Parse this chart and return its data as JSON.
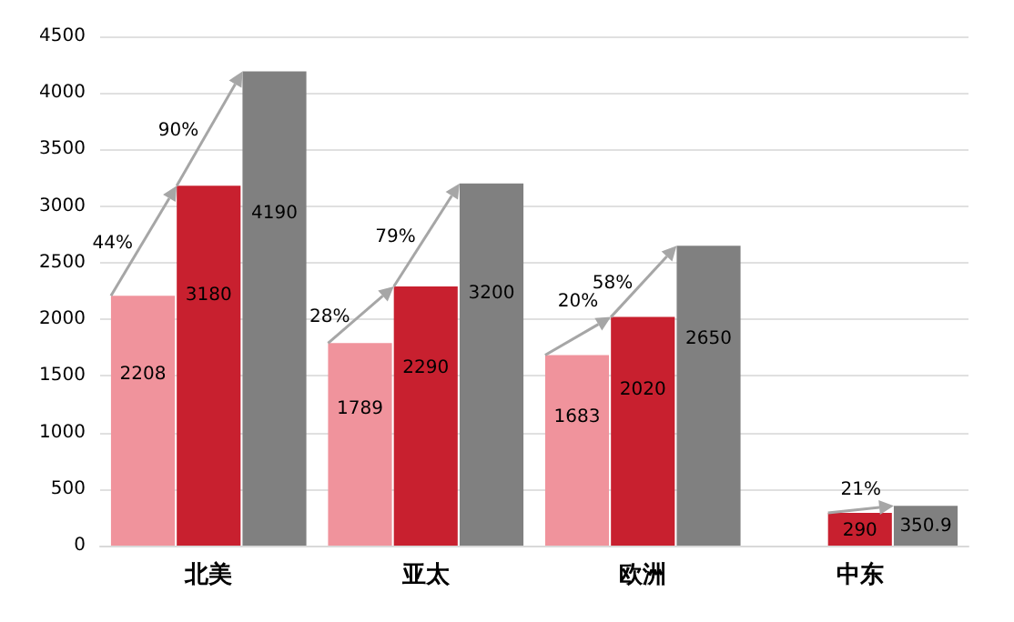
{
  "chart_data": {
    "type": "bar",
    "categories": [
      "北美",
      "亚太",
      "欧洲",
      "中东"
    ],
    "series": [
      {
        "color": "#f0939c",
        "values": [
          2208,
          1789,
          1683,
          null
        ]
      },
      {
        "color": "#c8202f",
        "values": [
          3180,
          2290,
          2020,
          290
        ]
      },
      {
        "color": "#808080",
        "values": [
          4190,
          3200,
          2650,
          350.9
        ]
      }
    ],
    "ylim": [
      0,
      4500
    ],
    "yticks": [
      0,
      500,
      1000,
      1500,
      2000,
      2500,
      3000,
      3500,
      4000,
      4500
    ],
    "grid": "y",
    "data_labels": true,
    "annotations": [
      "44%",
      "90%",
      "28%",
      "79%",
      "20%",
      "58%",
      "21%"
    ]
  }
}
